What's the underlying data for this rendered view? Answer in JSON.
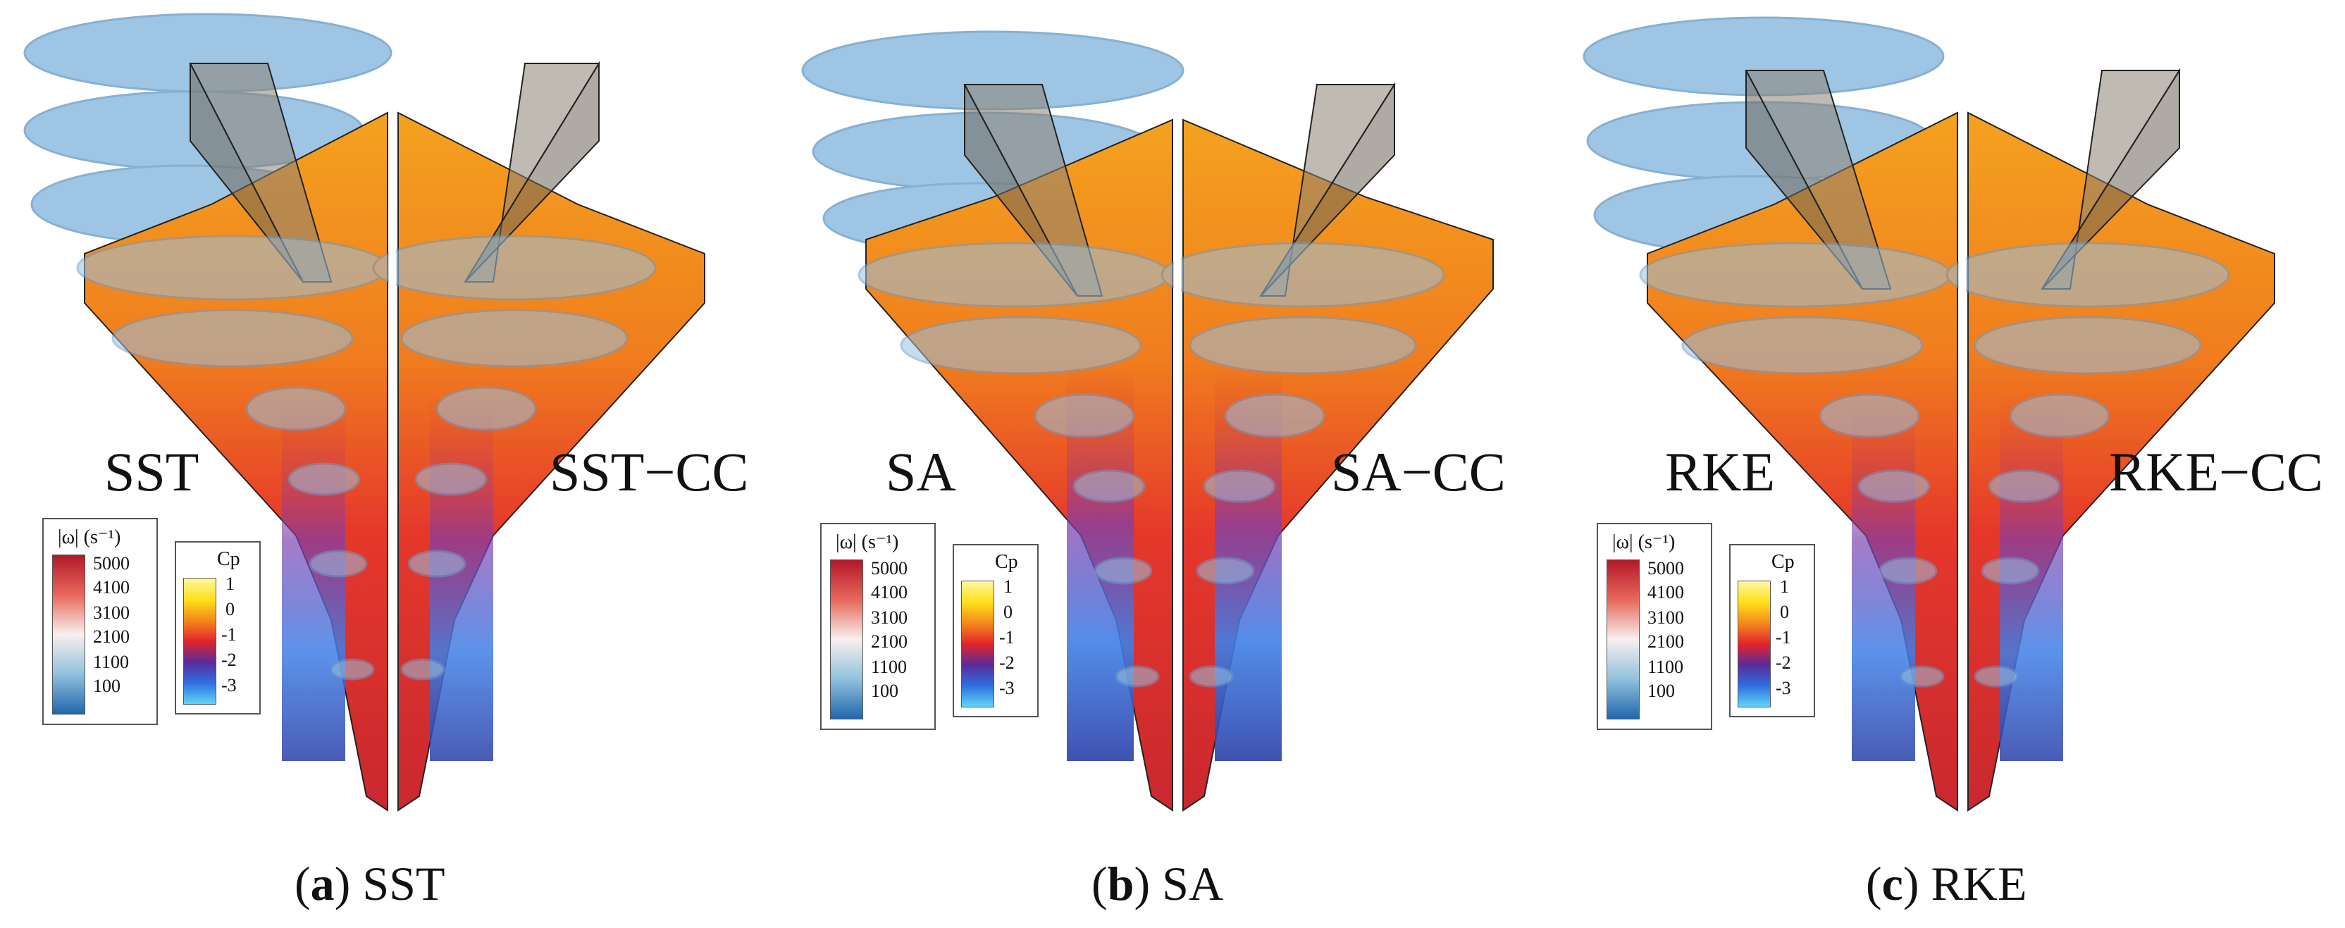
{
  "panels": [
    {
      "id": "a",
      "left_label": "SST",
      "right_label": "SST−CC",
      "caption_letter": "a",
      "caption_text": "SST"
    },
    {
      "id": "b",
      "left_label": "SA",
      "right_label": "SA−CC",
      "caption_letter": "b",
      "caption_text": "SA"
    },
    {
      "id": "c",
      "left_label": "RKE",
      "right_label": "RKE−CC",
      "caption_letter": "c",
      "caption_text": "RKE"
    }
  ],
  "legend_vorticity": {
    "title": "|ω| (s⁻¹)",
    "ticks": [
      "5000",
      "4100",
      "3100",
      "2100",
      "1100",
      "100"
    ]
  },
  "legend_cp": {
    "title": "Cp",
    "ticks": [
      "1",
      "0",
      "-1",
      "-2",
      "-3"
    ]
  },
  "colors": {
    "surface_red": "#e8352a",
    "surface_orange": "#f5891c",
    "surface_blue": "#3a6fd8",
    "isosurface": "#7fb2dc",
    "body_gray": "#8a8172"
  }
}
